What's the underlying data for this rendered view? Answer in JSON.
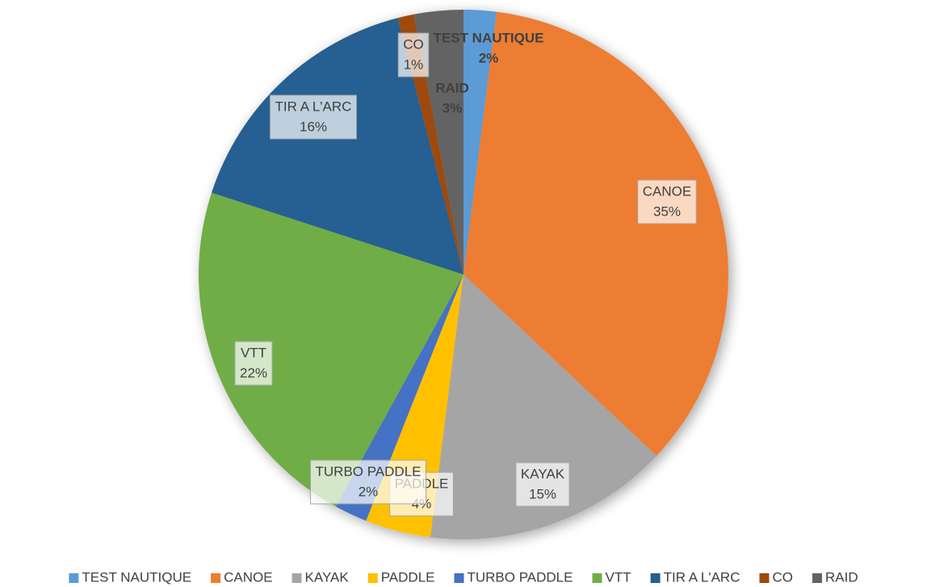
{
  "chart_data": {
    "type": "pie",
    "categories": [
      "TEST NAUTIQUE",
      "CANOE",
      "KAYAK",
      "PADDLE",
      "TURBO PADDLE",
      "VTT",
      "TIR A L'ARC",
      "CO",
      "RAID"
    ],
    "values": [
      2,
      35,
      15,
      4,
      2,
      22,
      16,
      1,
      3
    ],
    "value_labels": [
      "2%",
      "35%",
      "15%",
      "4%",
      "2%",
      "22%",
      "16%",
      "1%",
      "3%"
    ],
    "colors": [
      "#5b9bd5",
      "#ed7d31",
      "#a5a5a5",
      "#ffc000",
      "#4472c4",
      "#70ad47",
      "#255e91",
      "#9e480e",
      "#636363"
    ],
    "legend": "bottom"
  }
}
